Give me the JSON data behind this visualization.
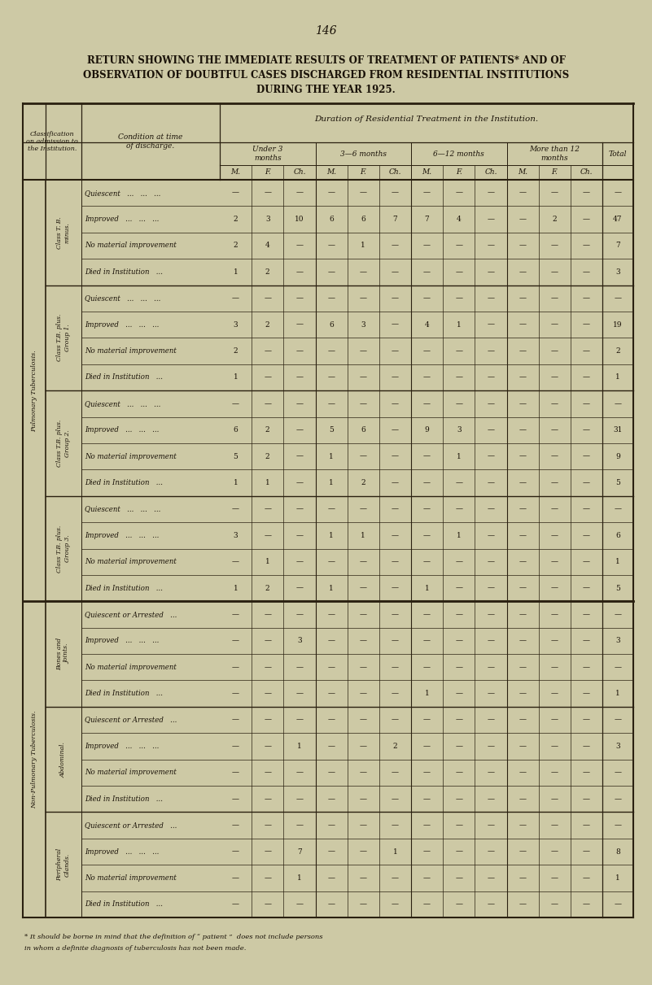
{
  "page_number": "146",
  "title_line1": "RETURN SHOWING THE IMMEDIATE RESULTS OF TREATMENT OF PATIENTS* AND OF",
  "title_line2": "OBSERVATION OF DOUBTFUL CASES DISCHARGED FROM RESIDENTIAL INSTITUTIONS",
  "title_line3": "DURING THE YEAR 1925.",
  "bg_color": "#cdc9a5",
  "text_color": "#1a1208",
  "footnote_line1": "* It should be borne in mind that the definition of “ patient ”  does not include persons",
  "footnote_line2": "in whom a definite diagnosis of tuberculosis has not been made.",
  "duration_header": "Duration of Residential Treatment in the Institution.",
  "mfc_headers": [
    "M.",
    "F.",
    "Ch.",
    "M.",
    "F.",
    "Ch.",
    "M.",
    "F.",
    "Ch.",
    "M.",
    "F.",
    "Ch."
  ],
  "sections": [
    {
      "classification": "Class T. B.\nminus.",
      "outer_label": "Pulmonary Tuberculosis.",
      "is_pulm": true,
      "rows": [
        {
          "condition": "Quiescent   ...   ...   ...",
          "vals": [
            "—",
            "—",
            "—",
            "—",
            "—",
            "—",
            "—",
            "—",
            "—",
            "—",
            "—",
            "—",
            "—"
          ]
        },
        {
          "condition": "Improved   ...   ...   ...",
          "vals": [
            "2",
            "3",
            "10",
            "6",
            "6",
            "7",
            "7",
            "4",
            "—",
            "—",
            "2",
            "—",
            "47"
          ]
        },
        {
          "condition": "No material improvement",
          "vals": [
            "2",
            "4",
            "—",
            "—",
            "1",
            "—",
            "—",
            "—",
            "—",
            "—",
            "—",
            "—",
            "7"
          ]
        },
        {
          "condition": "Died in Institution   ...",
          "vals": [
            "1",
            "2",
            "—",
            "—",
            "—",
            "—",
            "—",
            "—",
            "—",
            "—",
            "—",
            "—",
            "3"
          ]
        }
      ]
    },
    {
      "classification": "Class T.B. plus.\nGroup 1.",
      "outer_label": "",
      "is_pulm": true,
      "rows": [
        {
          "condition": "Quiescent   ...   ...   ...",
          "vals": [
            "—",
            "—",
            "—",
            "—",
            "—",
            "—",
            "—",
            "—",
            "—",
            "—",
            "—",
            "—",
            "—"
          ]
        },
        {
          "condition": "Improved   ...   ...   ...",
          "vals": [
            "3",
            "2",
            "—",
            "6",
            "3",
            "—",
            "4",
            "1",
            "—",
            "—",
            "—",
            "—",
            "19"
          ]
        },
        {
          "condition": "No material improvement",
          "vals": [
            "2",
            "—",
            "—",
            "—",
            "—",
            "—",
            "—",
            "—",
            "—",
            "—",
            "—",
            "—",
            "2"
          ]
        },
        {
          "condition": "Died in Institution   ...",
          "vals": [
            "1",
            "—",
            "—",
            "—",
            "—",
            "—",
            "—",
            "—",
            "—",
            "—",
            "—",
            "—",
            "1"
          ]
        }
      ]
    },
    {
      "classification": "Class T.B. plus.\nGroup 2.",
      "outer_label": "",
      "is_pulm": true,
      "rows": [
        {
          "condition": "Quiescent   ...   ...   ...",
          "vals": [
            "—",
            "—",
            "—",
            "—",
            "—",
            "—",
            "—",
            "—",
            "—",
            "—",
            "—",
            "—",
            "—"
          ]
        },
        {
          "condition": "Improved   ...   ...   ...",
          "vals": [
            "6",
            "2",
            "—",
            "5",
            "6",
            "—",
            "9",
            "3",
            "—",
            "—",
            "—",
            "—",
            "31"
          ]
        },
        {
          "condition": "No material improvement",
          "vals": [
            "5",
            "2",
            "—",
            "1",
            "—",
            "—",
            "—",
            "1",
            "—",
            "—",
            "—",
            "—",
            "9"
          ]
        },
        {
          "condition": "Died in Institution   ...",
          "vals": [
            "1",
            "1",
            "—",
            "1",
            "2",
            "—",
            "—",
            "—",
            "—",
            "—",
            "—",
            "—",
            "5"
          ]
        }
      ]
    },
    {
      "classification": "Class T.B. plus.\nGroup 3.",
      "outer_label": "",
      "is_pulm": true,
      "rows": [
        {
          "condition": "Quiescent   ...   ...   ...",
          "vals": [
            "—",
            "—",
            "—",
            "—",
            "—",
            "—",
            "—",
            "—",
            "—",
            "—",
            "—",
            "—",
            "—"
          ]
        },
        {
          "condition": "Improved   ...   ...   ...",
          "vals": [
            "3",
            "—",
            "—",
            "1",
            "1",
            "—",
            "—",
            "1",
            "—",
            "—",
            "—",
            "—",
            "6"
          ]
        },
        {
          "condition": "No material improvement",
          "vals": [
            "—",
            "1",
            "—",
            "—",
            "—",
            "—",
            "—",
            "—",
            "—",
            "—",
            "—",
            "—",
            "1"
          ]
        },
        {
          "condition": "Died in Institution   ...",
          "vals": [
            "1",
            "2",
            "—",
            "1",
            "—",
            "—",
            "1",
            "—",
            "—",
            "—",
            "—",
            "—",
            "5"
          ]
        }
      ]
    },
    {
      "classification": "Bones and\nJoints.",
      "outer_label": "Non-Pulmonary Tuberculosis.",
      "is_pulm": false,
      "rows": [
        {
          "condition": "Quiescent or Arrested   ...",
          "vals": [
            "—",
            "—",
            "—",
            "—",
            "—",
            "—",
            "—",
            "—",
            "—",
            "—",
            "—",
            "—",
            "—"
          ]
        },
        {
          "condition": "Improved   ...   ...   ...",
          "vals": [
            "—",
            "—",
            "3",
            "—",
            "—",
            "—",
            "—",
            "—",
            "—",
            "—",
            "—",
            "—",
            "3"
          ]
        },
        {
          "condition": "No material improvement",
          "vals": [
            "—",
            "—",
            "—",
            "—",
            "—",
            "—",
            "—",
            "—",
            "—",
            "—",
            "—",
            "—",
            "—"
          ]
        },
        {
          "condition": "Died in Institution   ...",
          "vals": [
            "—",
            "—",
            "—",
            "—",
            "—",
            "—",
            "1",
            "—",
            "—",
            "—",
            "—",
            "—",
            "1"
          ]
        }
      ]
    },
    {
      "classification": "Abdominal.",
      "outer_label": "",
      "is_pulm": false,
      "rows": [
        {
          "condition": "Quiescent or Arrested   ...",
          "vals": [
            "—",
            "—",
            "—",
            "—",
            "—",
            "—",
            "—",
            "—",
            "—",
            "—",
            "—",
            "—",
            "—"
          ]
        },
        {
          "condition": "Improved   ...   ...   ...",
          "vals": [
            "—",
            "—",
            "1",
            "—",
            "—",
            "2",
            "—",
            "—",
            "—",
            "—",
            "—",
            "—",
            "3"
          ]
        },
        {
          "condition": "No material improvement",
          "vals": [
            "—",
            "—",
            "—",
            "—",
            "—",
            "—",
            "—",
            "—",
            "—",
            "—",
            "—",
            "—",
            "—"
          ]
        },
        {
          "condition": "Died in Institution   ...",
          "vals": [
            "—",
            "—",
            "—",
            "—",
            "—",
            "—",
            "—",
            "—",
            "—",
            "—",
            "—",
            "—",
            "—"
          ]
        }
      ]
    },
    {
      "classification": "Peripheral\nGlands.",
      "outer_label": "",
      "is_pulm": false,
      "rows": [
        {
          "condition": "Quiescent or Arrested   ...",
          "vals": [
            "—",
            "—",
            "—",
            "—",
            "—",
            "—",
            "—",
            "—",
            "—",
            "—",
            "—",
            "—",
            "—"
          ]
        },
        {
          "condition": "Improved   ...   ...   ...",
          "vals": [
            "—",
            "—",
            "7",
            "—",
            "—",
            "1",
            "—",
            "—",
            "—",
            "—",
            "—",
            "—",
            "8"
          ]
        },
        {
          "condition": "No material improvement",
          "vals": [
            "—",
            "—",
            "1",
            "—",
            "—",
            "—",
            "—",
            "—",
            "—",
            "—",
            "—",
            "—",
            "1"
          ]
        },
        {
          "condition": "Died in Institution   ...",
          "vals": [
            "—",
            "—",
            "—",
            "—",
            "—",
            "—",
            "—",
            "—",
            "—",
            "—",
            "—",
            "—",
            "—"
          ]
        }
      ]
    }
  ]
}
